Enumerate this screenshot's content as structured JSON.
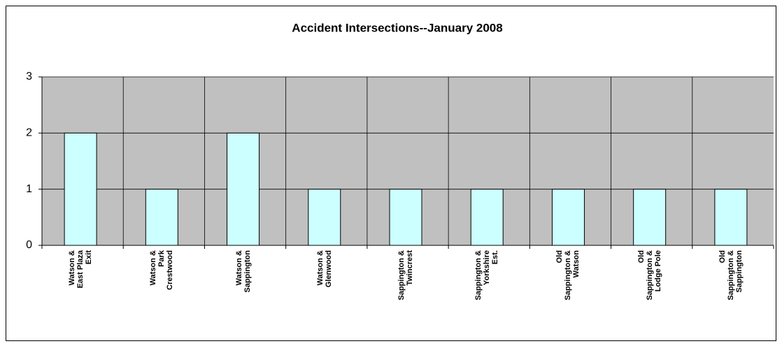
{
  "chart_data": {
    "type": "bar",
    "title": "Accident Intersections--January 2008",
    "categories": [
      "Watson & East Plaza Exit",
      "Watson & Park Crestwood",
      "Watson & Sappington",
      "Watson & Glenwood",
      "Sappington & Twincrest",
      "Sappington & Yorkshire Est.",
      "Old Sappington & Watson",
      "Old Sappington & Lodge Pole",
      "Old Sappington & Sappington"
    ],
    "values": [
      2,
      1,
      2,
      1,
      1,
      1,
      1,
      1,
      1
    ],
    "color": "#ccffff",
    "ylim": [
      0,
      3
    ],
    "yticks": [
      0,
      1,
      2,
      3
    ],
    "grid": true
  }
}
